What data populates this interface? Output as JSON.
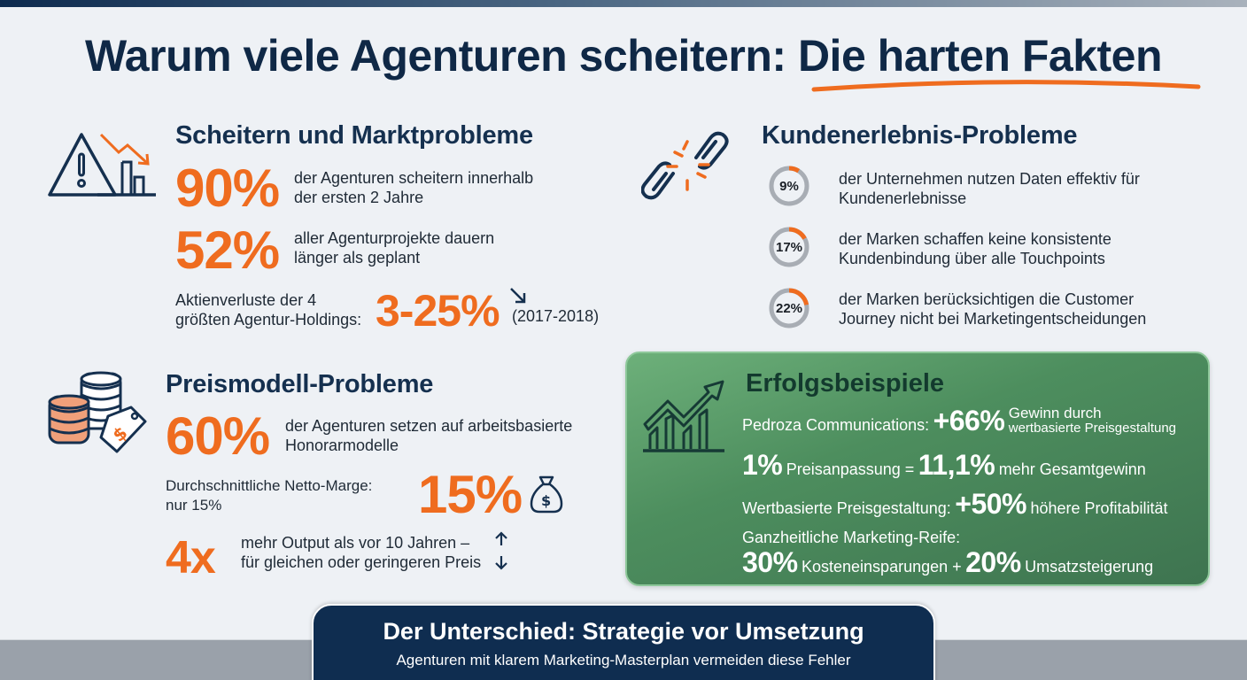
{
  "header": {
    "title": "Warum viele Agenturen scheitern: Die harten Fakten"
  },
  "colors": {
    "accent": "#ef6c1f",
    "navy": "#0f2846",
    "success_green": "#4d8e5e",
    "donut_track": "#a8adb4"
  },
  "market": {
    "icon": "warning-chart-down-icon",
    "title": "Scheitern und Marktprobleme",
    "stat1": {
      "value": "90%",
      "text_line1": "der Agenturen scheitern innerhalb",
      "text_line2": "der ersten 2 Jahre"
    },
    "stat2": {
      "value": "52%",
      "text_line1": "aller Agenturprojekte dauern",
      "text_line2": "länger als geplant"
    },
    "stat3": {
      "label_line1": "Aktienverluste der 4",
      "label_line2": "größten Agentur-Holdings:",
      "value": "3-25%",
      "period": "(2017-2018)",
      "trend_icon": "arrow-down-right-icon"
    }
  },
  "customer": {
    "icon": "broken-link-icon",
    "title": "Kundenerlebnis-Probleme",
    "items": [
      {
        "value": "9%",
        "percent": 9,
        "text_line1": "der Unternehmen nutzen Daten effektiv für",
        "text_line2": "Kundenerlebnisse"
      },
      {
        "value": "17%",
        "percent": 17,
        "text_line1": "der Marken schaffen keine konsistente",
        "text_line2": "Kundenbindung über alle Touchpoints"
      },
      {
        "value": "22%",
        "percent": 22,
        "text_line1": "der Marken berücksichtigen die Customer",
        "text_line2": "Journey nicht bei Marketingentscheidungen"
      }
    ]
  },
  "pricing": {
    "icon": "coins-price-tag-icon",
    "title": "Preismodell-Probleme",
    "stat1": {
      "value": "60%",
      "text_line1": "der Agenturen setzen auf arbeitsbasierte",
      "text_line2": "Honorarmodelle"
    },
    "stat2": {
      "label_line1": "Durchschnittliche Netto-Marge:",
      "label_line2": "nur 15%",
      "value": "15%",
      "icon": "money-bag-icon"
    },
    "stat3": {
      "value": "4x",
      "text_line1": "mehr Output als vor 10 Jahren –",
      "text_line2": "für gleichen oder geringeren Preis",
      "icon": "up-down-arrows-icon"
    }
  },
  "success": {
    "icon": "growth-chart-icon",
    "title": "Erfolgsbeispiele",
    "line1": {
      "prefix": "Pedroza Communications:",
      "value": "+66%",
      "suffix_line1": "Gewinn durch",
      "suffix_line2": "wertbasierte Preisgestaltung"
    },
    "line2": {
      "value1": "1%",
      "mid": "Preisanpassung =",
      "value2": "11,1%",
      "suffix": "mehr Gesamtgewinn"
    },
    "line3": {
      "prefix": "Wertbasierte Preisgestaltung:",
      "value": "+50%",
      "suffix": "höhere Profitabilität"
    },
    "line4": {
      "label": "Ganzheitliche Marketing-Reife:",
      "value1": "30%",
      "mid": "Kosteneinsparungen +",
      "value2": "20%",
      "suffix": "Umsatzsteigerung"
    }
  },
  "footer": {
    "title": "Der Unterschied: Strategie vor Umsetzung",
    "subtitle": "Agenturen mit klarem Marketing-Masterplan vermeiden diese Fehler"
  }
}
